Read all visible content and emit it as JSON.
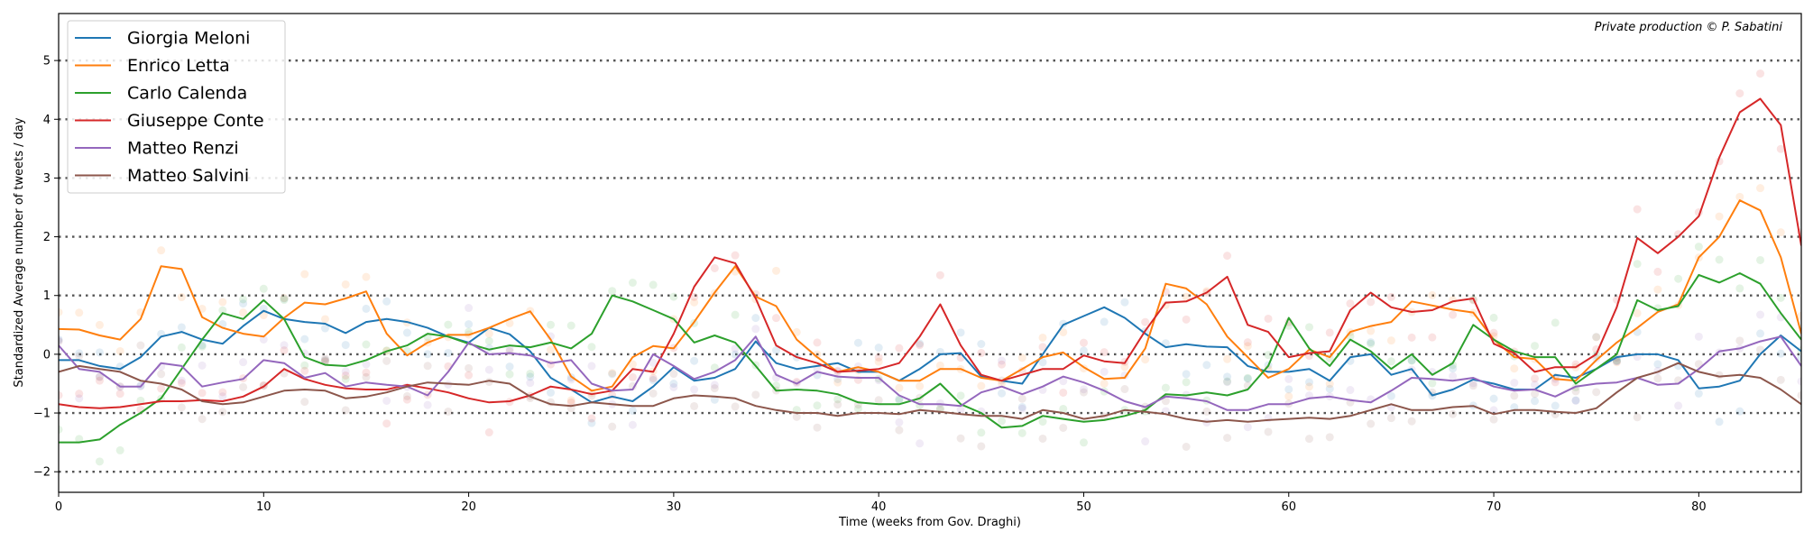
{
  "chart_data": {
    "type": "line",
    "xlabel": "Time (weeks from Gov. Draghi)",
    "ylabel": "Standardized Average number of tweets / day",
    "annotation": "Private production © P. Sabatini",
    "xlim": [
      0,
      85
    ],
    "ylim": [
      -2.35,
      5.8
    ],
    "x_ticks": [
      0,
      10,
      20,
      30,
      40,
      50,
      60,
      70,
      80
    ],
    "y_ticks": [
      -2,
      -1,
      0,
      1,
      2,
      3,
      4,
      5
    ],
    "y_tick_labels": [
      "−2",
      "−1",
      "0",
      "1",
      "2",
      "3",
      "4",
      "5"
    ],
    "grid": "horizontal dotted lines at integer y values",
    "legend_position": "top-left",
    "background_points": "faint scatter of raw weekly values behind each line",
    "series": [
      {
        "name": "Giorgia Meloni",
        "color": "#1f77b4",
        "x": [
          0,
          1,
          2,
          3,
          4,
          5,
          6,
          7,
          8,
          9,
          10,
          11,
          12,
          13,
          14,
          15,
          16,
          17,
          18,
          19,
          20,
          21,
          22,
          23,
          24,
          25,
          26,
          27,
          28,
          29,
          30,
          31,
          32,
          33,
          34,
          35,
          36,
          37,
          38,
          39,
          40,
          41,
          42,
          43,
          44,
          45,
          46,
          47,
          48,
          49,
          50,
          51,
          52,
          53,
          54,
          55,
          56,
          57,
          58,
          59,
          60,
          61,
          62,
          63,
          64,
          65,
          66,
          67,
          68,
          69,
          70,
          71,
          72,
          73,
          74,
          75,
          76,
          77,
          78,
          79,
          80,
          81,
          82,
          83,
          84,
          85
        ],
        "y": [
          -0.1,
          -0.1,
          -0.2,
          -0.25,
          -0.05,
          0.3,
          0.38,
          0.25,
          0.18,
          0.48,
          0.74,
          0.6,
          0.55,
          0.52,
          0.36,
          0.55,
          0.6,
          0.55,
          0.45,
          0.3,
          0.2,
          0.45,
          0.34,
          0.05,
          -0.4,
          -0.6,
          -0.82,
          -0.72,
          -0.8,
          -0.55,
          -0.22,
          -0.45,
          -0.4,
          -0.25,
          0.22,
          -0.15,
          -0.25,
          -0.2,
          -0.15,
          -0.3,
          -0.3,
          -0.45,
          -0.25,
          0.0,
          0.02,
          -0.38,
          -0.45,
          -0.5,
          0.0,
          0.5,
          0.65,
          0.8,
          0.62,
          0.35,
          0.12,
          0.17,
          0.13,
          0.12,
          -0.2,
          -0.3,
          -0.3,
          -0.25,
          -0.45,
          -0.05,
          0.0,
          -0.35,
          -0.25,
          -0.7,
          -0.6,
          -0.43,
          -0.5,
          -0.6,
          -0.6,
          -0.35,
          -0.4,
          -0.25,
          -0.05,
          0.0,
          0.0,
          -0.1,
          -0.58,
          -0.55,
          -0.45,
          0.0,
          0.32,
          0.05
        ]
      },
      {
        "name": "Enrico Letta",
        "color": "#ff7f0e",
        "x": [
          0,
          1,
          2,
          3,
          4,
          5,
          6,
          7,
          8,
          9,
          10,
          11,
          12,
          13,
          14,
          15,
          16,
          17,
          18,
          19,
          20,
          21,
          22,
          23,
          24,
          25,
          26,
          27,
          28,
          29,
          30,
          31,
          32,
          33,
          34,
          35,
          36,
          37,
          38,
          39,
          40,
          41,
          42,
          43,
          44,
          45,
          46,
          47,
          48,
          49,
          50,
          51,
          52,
          53,
          54,
          55,
          56,
          57,
          58,
          59,
          60,
          61,
          62,
          63,
          64,
          65,
          66,
          67,
          68,
          69,
          70,
          71,
          72,
          73,
          74,
          75,
          76,
          77,
          78,
          79,
          80,
          81,
          82,
          83,
          84,
          85
        ],
        "y": [
          0.43,
          0.42,
          0.32,
          0.25,
          0.6,
          1.5,
          1.45,
          0.63,
          0.45,
          0.35,
          0.3,
          0.62,
          0.88,
          0.85,
          0.95,
          1.07,
          0.35,
          -0.02,
          0.2,
          0.33,
          0.33,
          0.45,
          0.6,
          0.73,
          0.25,
          -0.38,
          -0.62,
          -0.55,
          -0.05,
          0.14,
          0.1,
          0.55,
          1.05,
          1.5,
          0.98,
          0.82,
          0.25,
          -0.05,
          -0.3,
          -0.22,
          -0.3,
          -0.45,
          -0.45,
          -0.25,
          -0.25,
          -0.4,
          -0.45,
          -0.25,
          -0.05,
          0.03,
          -0.22,
          -0.42,
          -0.4,
          0.1,
          1.2,
          1.12,
          0.85,
          0.3,
          -0.05,
          -0.4,
          -0.25,
          0.08,
          -0.05,
          0.38,
          0.48,
          0.55,
          0.9,
          0.83,
          0.76,
          0.71,
          0.25,
          -0.05,
          -0.08,
          -0.42,
          -0.45,
          -0.1,
          0.2,
          0.45,
          0.72,
          0.85,
          1.65,
          2.0,
          2.62,
          2.45,
          1.65,
          0.35
        ]
      },
      {
        "name": "Carlo Calenda",
        "color": "#2ca02c",
        "x": [
          0,
          1,
          2,
          3,
          4,
          5,
          6,
          7,
          8,
          9,
          10,
          11,
          12,
          13,
          14,
          15,
          16,
          17,
          18,
          19,
          20,
          21,
          22,
          23,
          24,
          25,
          26,
          27,
          28,
          29,
          30,
          31,
          32,
          33,
          34,
          35,
          36,
          37,
          38,
          39,
          40,
          41,
          42,
          43,
          44,
          45,
          46,
          47,
          48,
          49,
          50,
          51,
          52,
          53,
          54,
          55,
          56,
          57,
          58,
          59,
          60,
          61,
          62,
          63,
          64,
          65,
          66,
          67,
          68,
          69,
          70,
          71,
          72,
          73,
          74,
          75,
          76,
          77,
          78,
          79,
          80,
          81,
          82,
          83,
          84,
          85
        ],
        "y": [
          -1.5,
          -1.5,
          -1.45,
          -1.2,
          -1.0,
          -0.75,
          -0.25,
          0.25,
          0.7,
          0.6,
          0.92,
          0.6,
          -0.05,
          -0.18,
          -0.2,
          -0.1,
          0.05,
          0.15,
          0.35,
          0.3,
          0.18,
          0.08,
          0.15,
          0.12,
          0.2,
          0.1,
          0.35,
          1.0,
          0.9,
          0.75,
          0.6,
          0.2,
          0.32,
          0.2,
          -0.2,
          -0.62,
          -0.6,
          -0.62,
          -0.68,
          -0.82,
          -0.85,
          -0.85,
          -0.75,
          -0.5,
          -0.85,
          -1.0,
          -1.25,
          -1.22,
          -1.05,
          -1.1,
          -1.15,
          -1.12,
          -1.05,
          -0.95,
          -0.68,
          -0.7,
          -0.65,
          -0.7,
          -0.6,
          -0.2,
          0.62,
          0.1,
          -0.2,
          0.25,
          0.05,
          -0.25,
          0.0,
          -0.35,
          -0.15,
          0.5,
          0.25,
          0.05,
          -0.05,
          -0.05,
          -0.5,
          -0.25,
          0.0,
          0.92,
          0.75,
          0.82,
          1.35,
          1.22,
          1.38,
          1.2,
          0.7,
          0.25
        ]
      },
      {
        "name": "Giuseppe Conte",
        "color": "#d62728",
        "x": [
          0,
          1,
          2,
          3,
          4,
          5,
          6,
          7,
          8,
          9,
          10,
          11,
          12,
          13,
          14,
          15,
          16,
          17,
          18,
          19,
          20,
          21,
          22,
          23,
          24,
          25,
          26,
          27,
          28,
          29,
          30,
          31,
          32,
          33,
          34,
          35,
          36,
          37,
          38,
          39,
          40,
          41,
          42,
          43,
          44,
          45,
          46,
          47,
          48,
          49,
          50,
          51,
          52,
          53,
          54,
          55,
          56,
          57,
          58,
          59,
          60,
          61,
          62,
          63,
          64,
          65,
          66,
          67,
          68,
          69,
          70,
          71,
          72,
          73,
          74,
          75,
          76,
          77,
          78,
          79,
          80,
          81,
          82,
          83,
          84,
          85
        ],
        "y": [
          -0.85,
          -0.9,
          -0.92,
          -0.9,
          -0.85,
          -0.8,
          -0.8,
          -0.78,
          -0.8,
          -0.72,
          -0.55,
          -0.25,
          -0.42,
          -0.52,
          -0.58,
          -0.6,
          -0.6,
          -0.52,
          -0.58,
          -0.65,
          -0.75,
          -0.82,
          -0.8,
          -0.7,
          -0.55,
          -0.6,
          -0.68,
          -0.62,
          -0.25,
          -0.3,
          0.35,
          1.15,
          1.65,
          1.55,
          0.95,
          0.15,
          -0.05,
          -0.15,
          -0.3,
          -0.28,
          -0.25,
          -0.15,
          0.3,
          0.85,
          0.15,
          -0.35,
          -0.45,
          -0.35,
          -0.25,
          -0.25,
          -0.02,
          -0.12,
          -0.15,
          0.4,
          0.88,
          0.9,
          1.05,
          1.32,
          0.5,
          0.38,
          -0.05,
          0.02,
          0.05,
          0.75,
          1.05,
          0.8,
          0.72,
          0.75,
          0.9,
          0.95,
          0.18,
          0.02,
          -0.3,
          -0.22,
          -0.22,
          0.0,
          0.8,
          1.98,
          1.72,
          2.0,
          2.35,
          3.35,
          4.12,
          4.35,
          3.9,
          1.85
        ]
      },
      {
        "name": "Matteo Renzi",
        "color": "#9467bd",
        "x": [
          0,
          1,
          2,
          3,
          4,
          5,
          6,
          7,
          8,
          9,
          10,
          11,
          12,
          13,
          14,
          15,
          16,
          17,
          18,
          19,
          20,
          21,
          22,
          23,
          24,
          25,
          26,
          27,
          28,
          29,
          30,
          31,
          32,
          33,
          34,
          35,
          36,
          37,
          38,
          39,
          40,
          41,
          42,
          43,
          44,
          45,
          46,
          47,
          48,
          49,
          50,
          51,
          52,
          53,
          54,
          55,
          56,
          57,
          58,
          59,
          60,
          61,
          62,
          63,
          64,
          65,
          66,
          67,
          68,
          69,
          70,
          71,
          72,
          73,
          74,
          75,
          76,
          77,
          78,
          79,
          80,
          81,
          82,
          83,
          84,
          85
        ],
        "y": [
          0.15,
          -0.25,
          -0.3,
          -0.55,
          -0.55,
          -0.15,
          -0.2,
          -0.55,
          -0.48,
          -0.42,
          -0.1,
          -0.15,
          -0.4,
          -0.32,
          -0.55,
          -0.48,
          -0.52,
          -0.55,
          -0.7,
          -0.3,
          0.2,
          0.0,
          0.02,
          -0.02,
          -0.15,
          -0.1,
          -0.5,
          -0.62,
          -0.6,
          0.0,
          -0.2,
          -0.42,
          -0.3,
          -0.1,
          0.3,
          -0.35,
          -0.5,
          -0.3,
          -0.38,
          -0.4,
          -0.4,
          -0.7,
          -0.85,
          -0.85,
          -0.88,
          -0.65,
          -0.55,
          -0.68,
          -0.55,
          -0.38,
          -0.48,
          -0.62,
          -0.8,
          -0.9,
          -0.72,
          -0.75,
          -0.8,
          -0.95,
          -0.95,
          -0.85,
          -0.85,
          -0.75,
          -0.72,
          -0.78,
          -0.82,
          -0.62,
          -0.4,
          -0.42,
          -0.45,
          -0.4,
          -0.55,
          -0.62,
          -0.6,
          -0.72,
          -0.55,
          -0.5,
          -0.48,
          -0.4,
          -0.52,
          -0.5,
          -0.25,
          0.05,
          0.1,
          0.22,
          0.3,
          -0.2
        ]
      },
      {
        "name": "Matteo Salvini",
        "color": "#8c564b",
        "x": [
          0,
          1,
          2,
          3,
          4,
          5,
          6,
          7,
          8,
          9,
          10,
          11,
          12,
          13,
          14,
          15,
          16,
          17,
          18,
          19,
          20,
          21,
          22,
          23,
          24,
          25,
          26,
          27,
          28,
          29,
          30,
          31,
          32,
          33,
          34,
          35,
          36,
          37,
          38,
          39,
          40,
          41,
          42,
          43,
          44,
          45,
          46,
          47,
          48,
          49,
          50,
          51,
          52,
          53,
          54,
          55,
          56,
          57,
          58,
          59,
          60,
          61,
          62,
          63,
          64,
          65,
          66,
          67,
          68,
          69,
          70,
          71,
          72,
          73,
          74,
          75,
          76,
          77,
          78,
          79,
          80,
          81,
          82,
          83,
          84,
          85
        ],
        "y": [
          -0.3,
          -0.2,
          -0.25,
          -0.3,
          -0.45,
          -0.5,
          -0.6,
          -0.8,
          -0.85,
          -0.82,
          -0.72,
          -0.62,
          -0.6,
          -0.62,
          -0.75,
          -0.72,
          -0.65,
          -0.55,
          -0.48,
          -0.5,
          -0.52,
          -0.45,
          -0.5,
          -0.72,
          -0.85,
          -0.88,
          -0.82,
          -0.85,
          -0.88,
          -0.88,
          -0.75,
          -0.7,
          -0.72,
          -0.75,
          -0.88,
          -0.95,
          -1.0,
          -1.0,
          -1.05,
          -1.0,
          -1.0,
          -1.02,
          -0.95,
          -0.98,
          -1.02,
          -1.05,
          -1.05,
          -1.1,
          -0.95,
          -1.0,
          -1.1,
          -1.05,
          -0.95,
          -0.98,
          -1.02,
          -1.1,
          -1.15,
          -1.12,
          -1.15,
          -1.12,
          -1.1,
          -1.08,
          -1.1,
          -1.05,
          -0.95,
          -0.85,
          -0.95,
          -0.95,
          -0.9,
          -0.88,
          -1.02,
          -0.95,
          -0.95,
          -0.98,
          -1.0,
          -0.92,
          -0.65,
          -0.4,
          -0.3,
          -0.15,
          -0.3,
          -0.38,
          -0.35,
          -0.4,
          -0.6,
          -0.85
        ]
      }
    ]
  }
}
